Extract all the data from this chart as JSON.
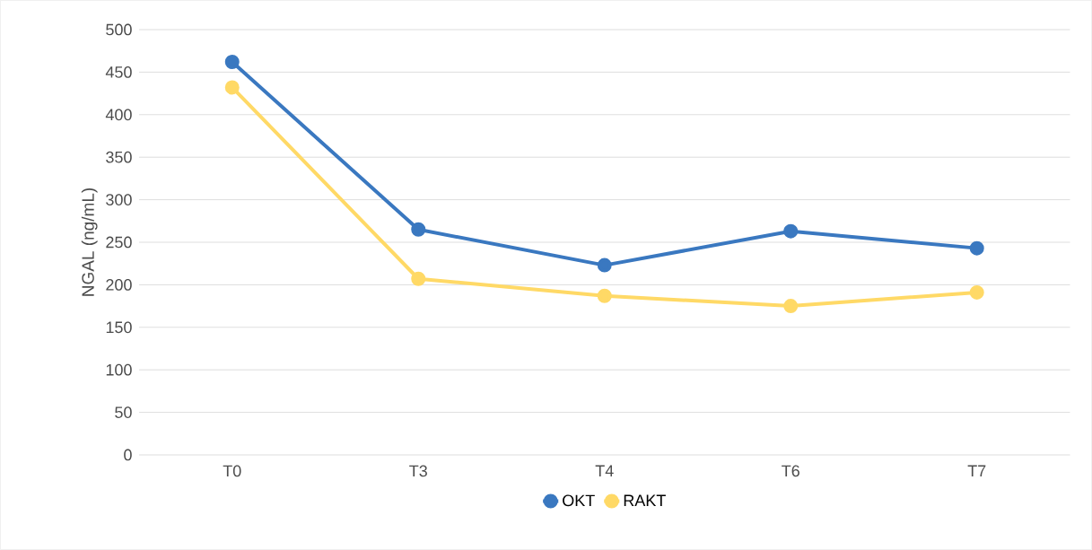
{
  "chart_data": {
    "type": "line",
    "ylabel": "NGAL (ng/mL)",
    "categories": [
      "T0",
      "T3",
      "T4",
      "T6",
      "T7"
    ],
    "series": [
      {
        "name": "OKT",
        "color": "#3a78c0",
        "values": [
          462,
          265,
          223,
          263,
          243
        ]
      },
      {
        "name": "RAKT",
        "color": "#ffd966",
        "values": [
          432,
          207,
          187,
          175,
          191
        ]
      }
    ],
    "ylim": [
      0,
      500
    ],
    "yticks": [
      0,
      50,
      100,
      150,
      200,
      250,
      300,
      350,
      400,
      450,
      500
    ],
    "grid": "y",
    "legend": "bottom",
    "marker": "circle",
    "line_style": "solid"
  }
}
